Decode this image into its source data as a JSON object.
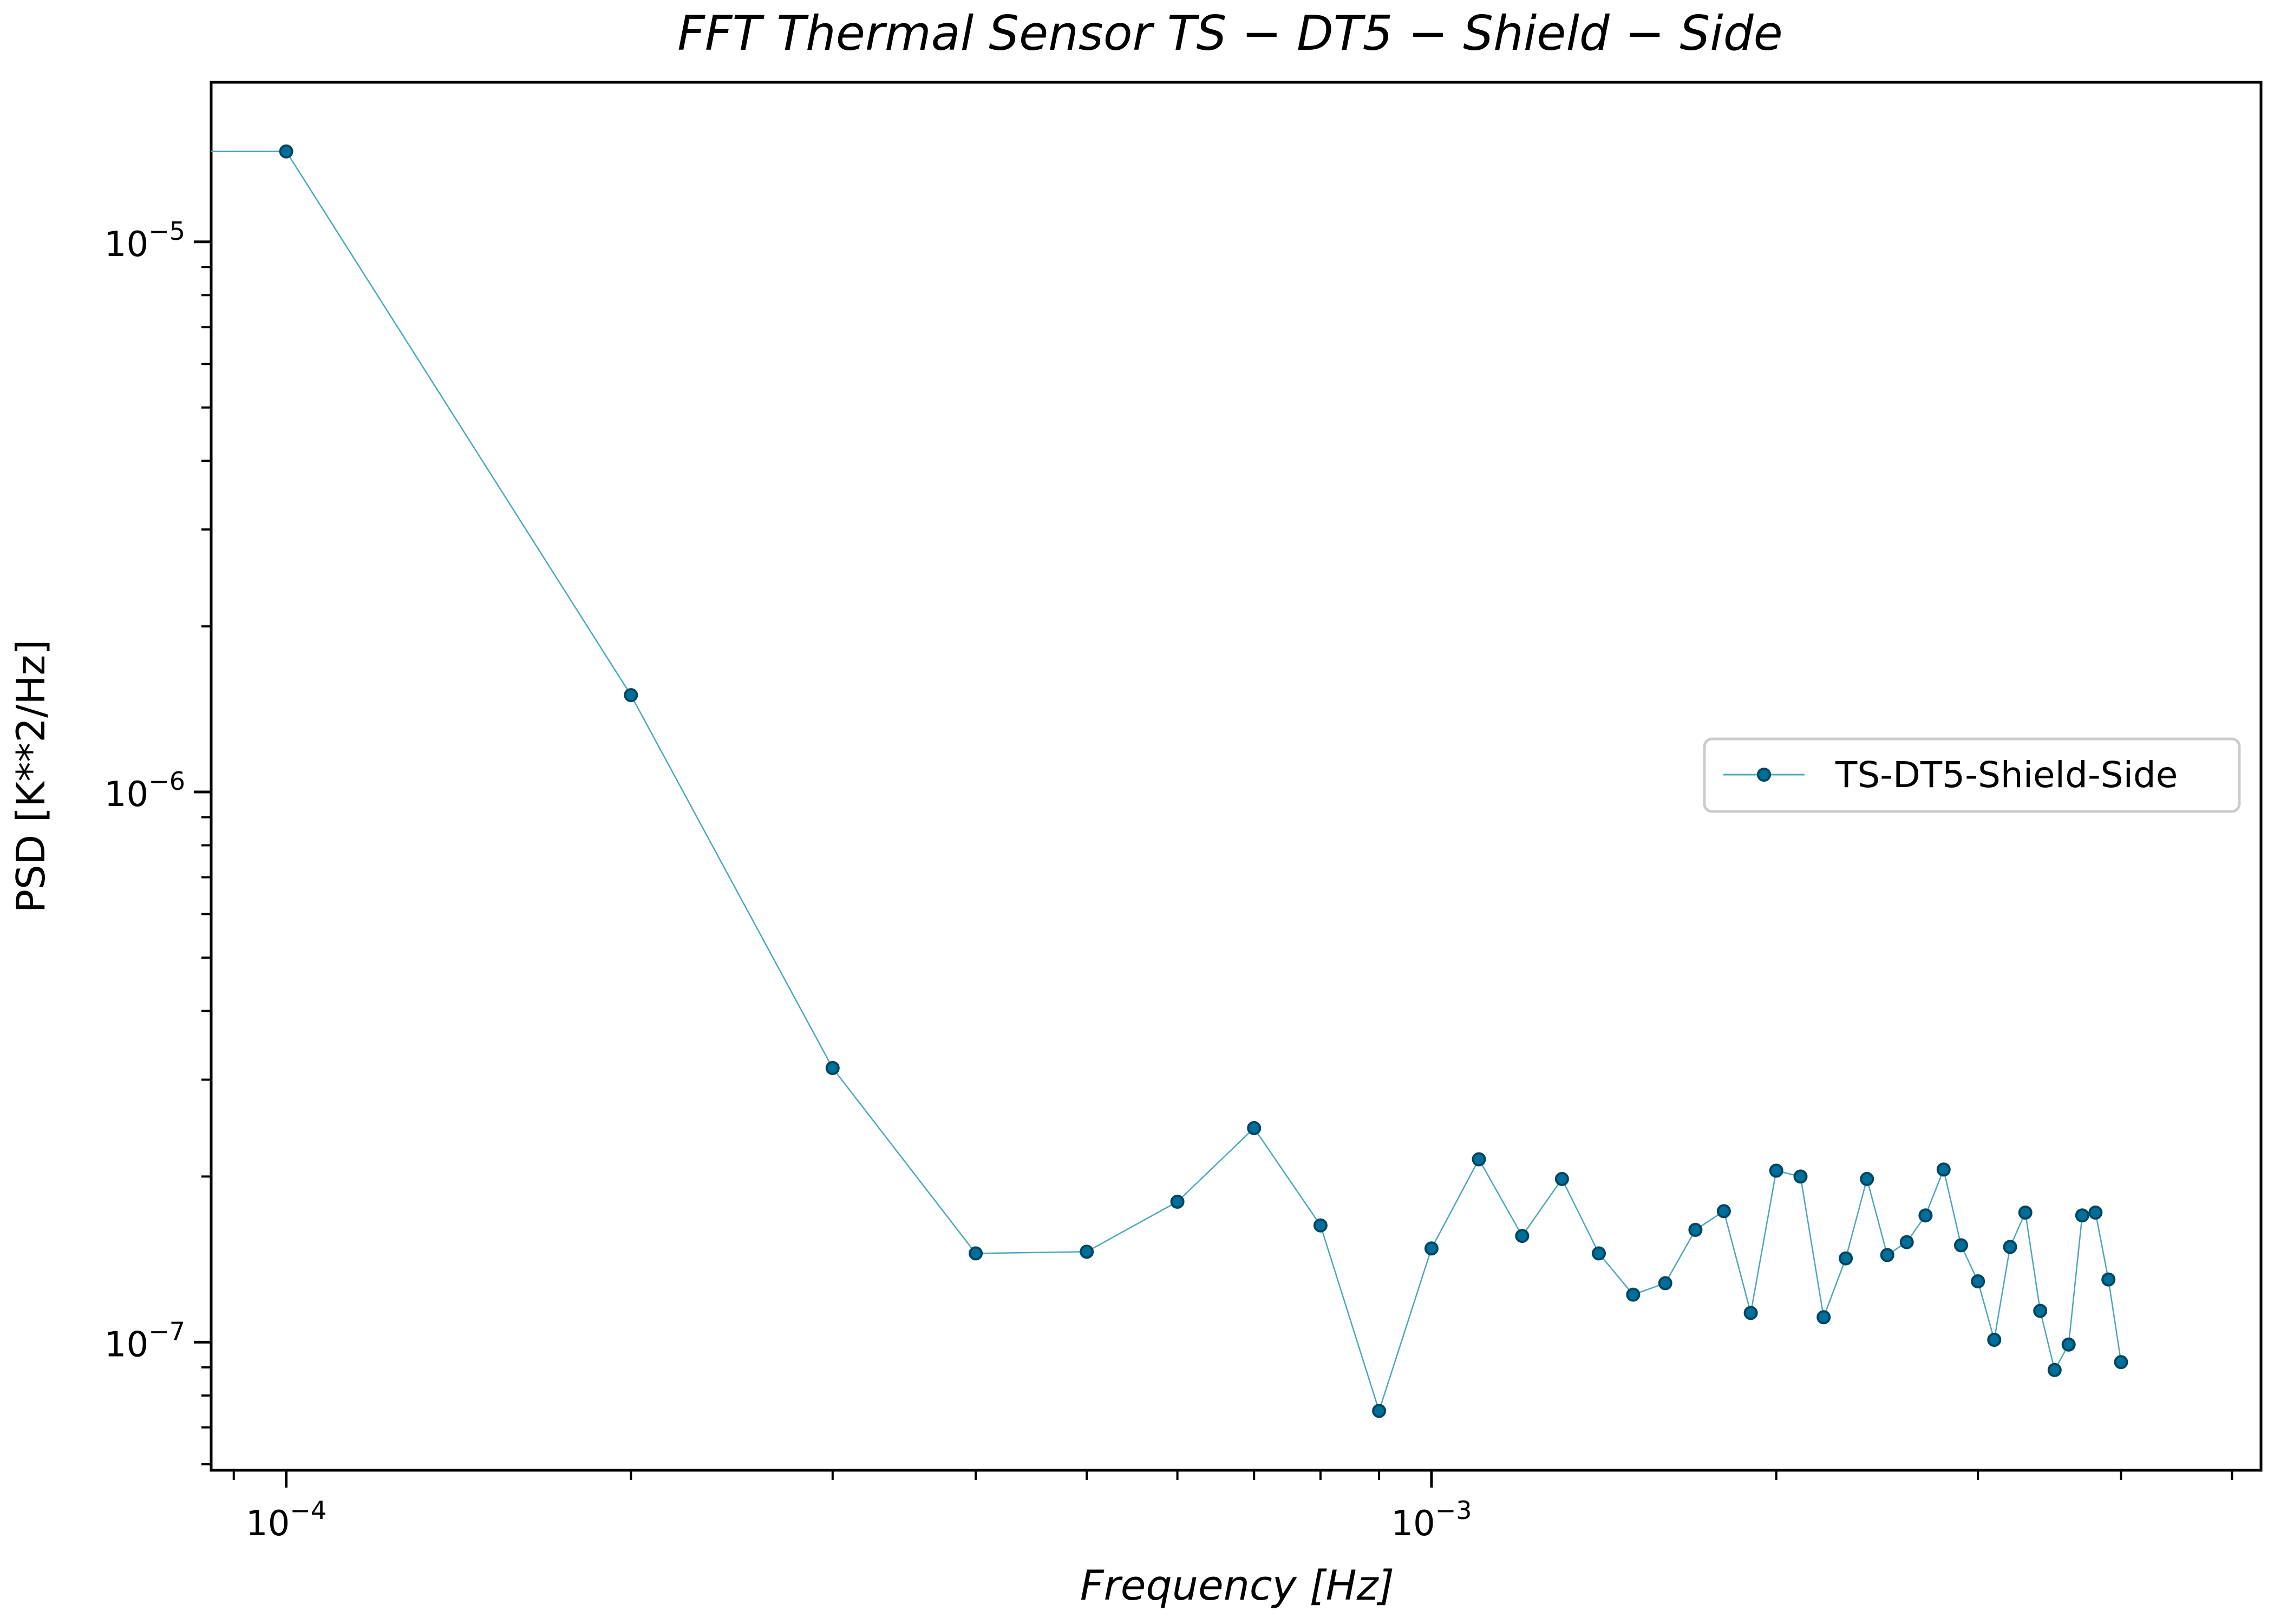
{
  "chart_data": {
    "type": "line",
    "title": "FFT Thermal Sensor TS − DT5 − Shield − Side",
    "xlabel": "Frequency [Hz]",
    "ylabel": "PSD [K**2/Hz]",
    "xscale": "log",
    "yscale": "log",
    "xlim": [
      8.6e-05,
      0.0053
    ],
    "ylim": [
      5.85e-08,
      1.95e-05
    ],
    "xticks": [
      {
        "base": "10",
        "exp": "−4"
      },
      {
        "base": "10",
        "exp": "−3"
      }
    ],
    "yticks": [
      {
        "base": "10",
        "exp": "−5"
      },
      {
        "base": "10",
        "exp": "−6"
      },
      {
        "base": "10",
        "exp": "−7"
      }
    ],
    "grid": false,
    "legend_position": "center-right",
    "series": [
      {
        "name": "TS-DT5-Shield-Side",
        "line_color": "#4aa8b8",
        "marker_color": "#006e9a",
        "marker_edge": "#004660",
        "points": [
          [
            0.0001,
            1.46e-05
          ],
          [
            0.0002,
            1.5e-06
          ],
          [
            0.0003,
            3.15e-07
          ],
          [
            0.0004,
            1.45e-07
          ],
          [
            0.0005,
            1.46e-07
          ],
          [
            0.0006,
            1.8e-07
          ],
          [
            0.0007,
            2.45e-07
          ],
          [
            0.0008,
            1.63e-07
          ],
          [
            0.0009,
            7.5e-08
          ],
          [
            0.001,
            1.48e-07
          ],
          [
            0.0011,
            2.15e-07
          ],
          [
            0.0012,
            1.56e-07
          ],
          [
            0.0013,
            1.98e-07
          ],
          [
            0.0014,
            1.45e-07
          ],
          [
            0.0015,
            1.22e-07
          ],
          [
            0.0016,
            1.28e-07
          ],
          [
            0.0017,
            1.6e-07
          ],
          [
            0.0018,
            1.73e-07
          ],
          [
            0.0019,
            1.13e-07
          ],
          [
            0.002,
            2.05e-07
          ],
          [
            0.0021,
            2e-07
          ],
          [
            0.0022,
            1.11e-07
          ],
          [
            0.0023,
            1.42e-07
          ],
          [
            0.0024,
            1.98e-07
          ],
          [
            0.0025,
            1.44e-07
          ],
          [
            0.0026,
            1.52e-07
          ],
          [
            0.0027,
            1.7e-07
          ],
          [
            0.0028,
            2.06e-07
          ],
          [
            0.0029,
            1.5e-07
          ],
          [
            0.003,
            1.29e-07
          ],
          [
            0.0031,
            1.01e-07
          ],
          [
            0.0032,
            1.49e-07
          ],
          [
            0.0033,
            1.72e-07
          ],
          [
            0.0034,
            1.14e-07
          ],
          [
            0.0035,
            8.9e-08
          ],
          [
            0.0036,
            9.9e-08
          ],
          [
            0.0037,
            1.7e-07
          ],
          [
            0.0038,
            1.72e-07
          ],
          [
            0.0039,
            1.3e-07
          ],
          [
            0.004,
            9.2e-08
          ]
        ]
      }
    ]
  }
}
